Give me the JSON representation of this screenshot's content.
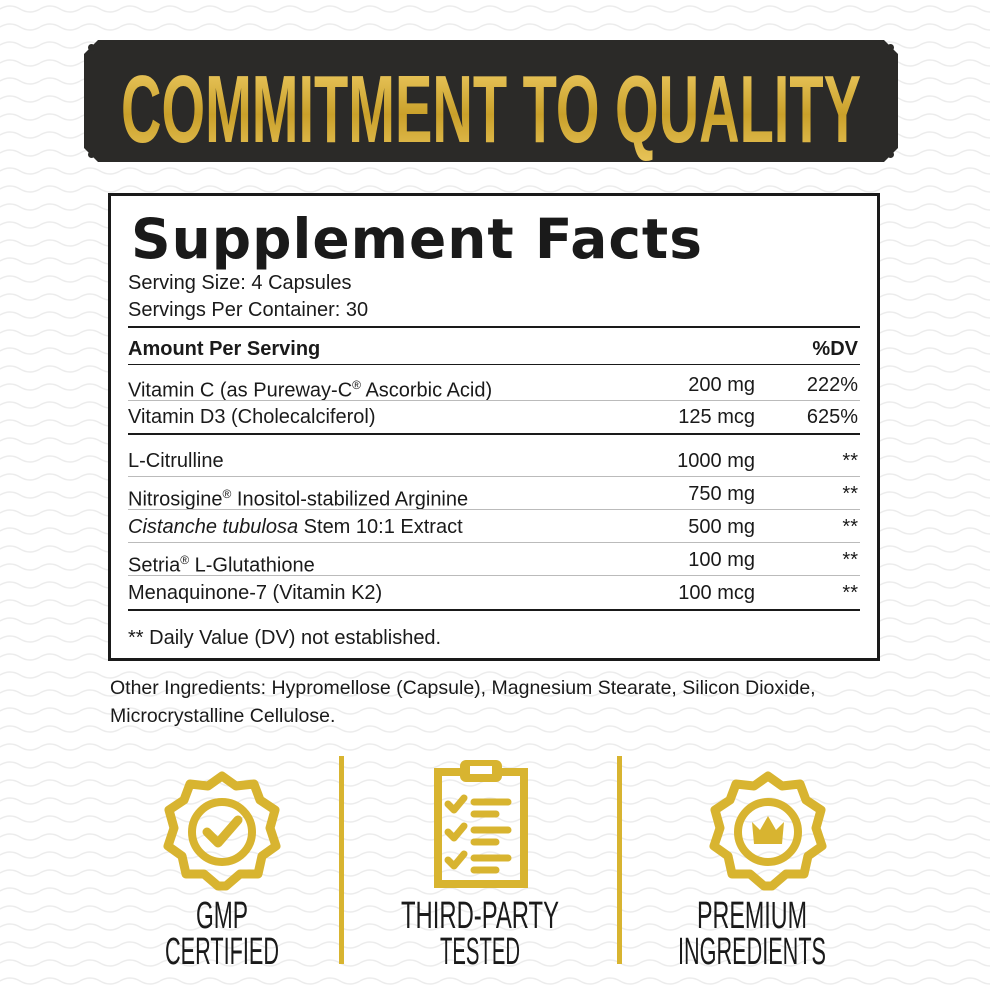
{
  "banner": {
    "title": "COMMITMENT TO QUALITY"
  },
  "facts": {
    "title": "Supplement Facts",
    "serving_size": "Serving Size: 4 Capsules",
    "servings_per_container": "Servings Per Container: 30",
    "header": {
      "amount": "Amount Per Serving",
      "dv": "%DV"
    },
    "vitamins": [
      {
        "name_a": "Vitamin C (as Pureway-C",
        "sup": "®",
        "name_b": " Ascorbic Acid)",
        "amount": "200 mg",
        "dv": "222%"
      },
      {
        "name_a": "Vitamin D3 (Cholecalciferol)",
        "amount": "125 mcg",
        "dv": "625%"
      }
    ],
    "ingredients": [
      {
        "name_a": "L-Citrulline",
        "amount": "1000 mg",
        "dv": "**"
      },
      {
        "name_a": "Nitrosigine",
        "sup": "®",
        "name_b": " Inositol-stabilized Arginine",
        "amount": "750 mg",
        "dv": "**"
      },
      {
        "italic": "Cistanche tubulosa",
        "name_b": " Stem 10:1 Extract",
        "amount": "500 mg",
        "dv": "**"
      },
      {
        "name_a": "Setria",
        "sup": "®",
        "name_b": " L-Glutathione",
        "amount": "100 mg",
        "dv": "**"
      },
      {
        "name_a": "Menaquinone-7 (Vitamin K2)",
        "amount": "100 mcg",
        "dv": "**"
      }
    ],
    "footnote": "** Daily Value (DV) not established."
  },
  "other_ingredients": {
    "label": "Other Ingredients:",
    "text": " Hypromellose (Capsule), Magnesium Stearate, Silicon Dioxide, Microcrystalline Cellulose."
  },
  "badges": [
    {
      "icon": "seal-check-icon",
      "line1": "GMP",
      "line2": "CERTIFIED"
    },
    {
      "icon": "clipboard-checklist-icon",
      "line1": "THIRD-PARTY",
      "line2": "TESTED"
    },
    {
      "icon": "seal-crown-icon",
      "line1": "PREMIUM",
      "line2": "INGREDIENTS"
    }
  ],
  "colors": {
    "gold": "#d8b430",
    "dark": "#2b2a28"
  }
}
